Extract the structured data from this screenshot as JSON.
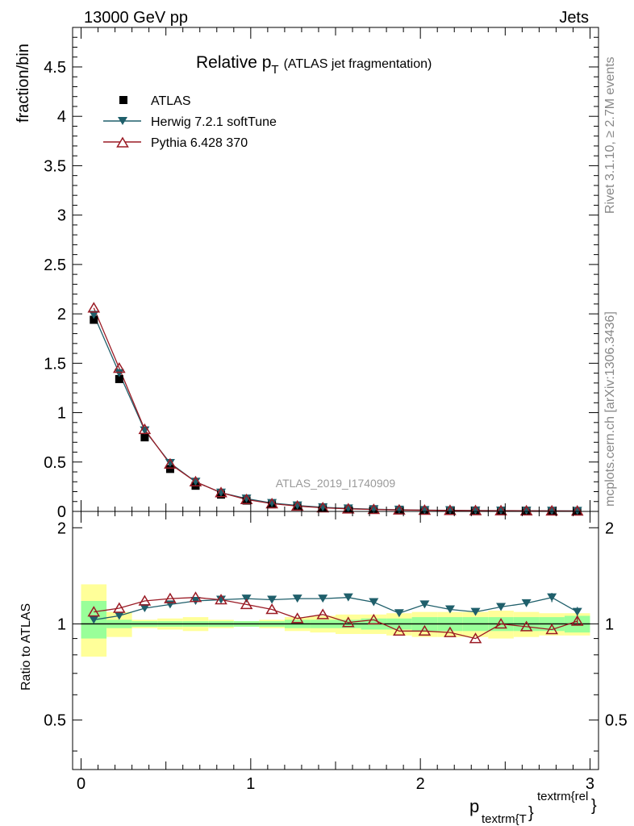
{
  "header": {
    "left": "13000 GeV pp",
    "right": "Jets"
  },
  "side_labels": {
    "rivet": "Rivet 3.1.10, ≥ 2.7M events",
    "mcplots": "mcplots.cern.ch [arXiv:1306.3436]"
  },
  "watermark": "ATLAS_2019_I1740909",
  "colors": {
    "atlas": "#000000",
    "herwig": "#1f5f6b",
    "pythia": "#9a1a24",
    "band_inner": "#99ff99",
    "band_outer": "#ffff99"
  },
  "chart_data": [
    {
      "type": "scatter",
      "title_main": "Relative p",
      "title_sub": "T",
      "title_rest": "(ATLAS jet fragmentation)",
      "ylabel": "fraction/bin",
      "xlim": [
        -0.05,
        3.05
      ],
      "ylim": [
        0,
        4.9
      ],
      "yticks": [
        {
          "v": 0,
          "label": "0"
        },
        {
          "v": 0.5,
          "label": "0.5"
        },
        {
          "v": 1,
          "label": "1"
        },
        {
          "v": 1.5,
          "label": "1.5"
        },
        {
          "v": 2,
          "label": "2"
        },
        {
          "v": 2.5,
          "label": "2.5"
        },
        {
          "v": 3,
          "label": "3"
        },
        {
          "v": 3.5,
          "label": "3.5"
        },
        {
          "v": 4,
          "label": "4"
        },
        {
          "v": 4.5,
          "label": "4.5"
        }
      ],
      "x": [
        0.075,
        0.225,
        0.375,
        0.525,
        0.675,
        0.825,
        0.975,
        1.125,
        1.275,
        1.425,
        1.575,
        1.725,
        1.875,
        2.025,
        2.175,
        2.325,
        2.475,
        2.625,
        2.775,
        2.925
      ],
      "series": [
        {
          "name": "ATLAS",
          "marker": "square",
          "values": [
            1.94,
            1.34,
            0.75,
            0.43,
            0.26,
            0.17,
            0.11,
            0.072,
            0.05,
            0.035,
            0.025,
            0.019,
            0.015,
            0.012,
            0.01,
            0.008,
            0.007,
            0.006,
            0.005,
            0.004
          ]
        },
        {
          "name": "Herwig 7.2.1 softTune",
          "marker": "triangle-down",
          "values": [
            1.99,
            1.4,
            0.82,
            0.49,
            0.3,
            0.19,
            0.13,
            0.085,
            0.06,
            0.042,
            0.03,
            0.022,
            0.017,
            0.013,
            0.011,
            0.009,
            0.008,
            0.007,
            0.006,
            0.005
          ]
        },
        {
          "name": "Pythia 6.428 370",
          "marker": "triangle-up-open",
          "values": [
            2.06,
            1.45,
            0.83,
            0.48,
            0.3,
            0.19,
            0.12,
            0.078,
            0.054,
            0.037,
            0.026,
            0.02,
            0.015,
            0.012,
            0.01,
            0.008,
            0.007,
            0.006,
            0.005,
            0.004
          ]
        }
      ]
    },
    {
      "type": "scatter",
      "ylabel": "Ratio to ATLAS",
      "xlabel_main": "p",
      "xlabel_sub": "textrm{T",
      "xlabel_brace": "}",
      "xlabel_sup": "textrm{rel",
      "xlabel_end": "}",
      "xlim": [
        -0.05,
        3.05
      ],
      "ylim": [
        0.35,
        2.25
      ],
      "xticks": [
        {
          "v": 0,
          "label": "0"
        },
        {
          "v": 1,
          "label": "1"
        },
        {
          "v": 2,
          "label": "2"
        },
        {
          "v": 3,
          "label": "3"
        }
      ],
      "yticks": [
        {
          "v": 0.5,
          "label": "0.5"
        },
        {
          "v": 1,
          "label": "1"
        },
        {
          "v": 2,
          "label": "2"
        }
      ],
      "x": [
        0.075,
        0.225,
        0.375,
        0.525,
        0.675,
        0.825,
        0.975,
        1.125,
        1.275,
        1.425,
        1.575,
        1.725,
        1.875,
        2.025,
        2.175,
        2.325,
        2.475,
        2.625,
        2.775,
        2.925
      ],
      "bins": [
        0.0,
        0.15,
        0.3,
        0.45,
        0.6,
        0.75,
        0.9,
        1.05,
        1.2,
        1.35,
        1.5,
        1.65,
        1.8,
        1.95,
        2.1,
        2.25,
        2.4,
        2.55,
        2.7,
        2.85,
        3.0
      ],
      "band_inner": [
        [
          0.9,
          1.18
        ],
        [
          0.97,
          1.03
        ],
        [
          0.98,
          1.02
        ],
        [
          0.98,
          1.02
        ],
        [
          0.98,
          1.02
        ],
        [
          0.98,
          1.02
        ],
        [
          0.98,
          1.02
        ],
        [
          0.98,
          1.02
        ],
        [
          0.97,
          1.03
        ],
        [
          0.97,
          1.03
        ],
        [
          0.97,
          1.03
        ],
        [
          0.96,
          1.04
        ],
        [
          0.96,
          1.04
        ],
        [
          0.95,
          1.05
        ],
        [
          0.95,
          1.05
        ],
        [
          0.95,
          1.05
        ],
        [
          0.95,
          1.05
        ],
        [
          0.95,
          1.05
        ],
        [
          0.95,
          1.05
        ],
        [
          0.94,
          1.06
        ]
      ],
      "band_outer": [
        [
          0.79,
          1.33
        ],
        [
          0.91,
          1.09
        ],
        [
          0.97,
          1.03
        ],
        [
          0.96,
          1.04
        ],
        [
          0.95,
          1.05
        ],
        [
          0.97,
          1.03
        ],
        [
          0.98,
          1.02
        ],
        [
          0.97,
          1.03
        ],
        [
          0.95,
          1.05
        ],
        [
          0.94,
          1.06
        ],
        [
          0.93,
          1.07
        ],
        [
          0.93,
          1.07
        ],
        [
          0.92,
          1.08
        ],
        [
          0.91,
          1.09
        ],
        [
          0.91,
          1.09
        ],
        [
          0.91,
          1.09
        ],
        [
          0.9,
          1.1
        ],
        [
          0.91,
          1.09
        ],
        [
          0.92,
          1.08
        ],
        [
          0.92,
          1.08
        ]
      ],
      "series": [
        {
          "name": "Herwig 7.2.1 softTune",
          "marker": "triangle-down",
          "values": [
            1.03,
            1.06,
            1.12,
            1.15,
            1.18,
            1.19,
            1.2,
            1.19,
            1.2,
            1.2,
            1.21,
            1.17,
            1.08,
            1.15,
            1.11,
            1.09,
            1.13,
            1.16,
            1.21,
            1.09
          ],
          "err": [
            0,
            0,
            0,
            0,
            0,
            0,
            0,
            0,
            0,
            0,
            0,
            0,
            0,
            0,
            0,
            0,
            0,
            0,
            0.04,
            0.04
          ]
        },
        {
          "name": "Pythia 6.428 370",
          "marker": "triangle-up-open",
          "values": [
            1.09,
            1.12,
            1.18,
            1.2,
            1.21,
            1.19,
            1.15,
            1.11,
            1.04,
            1.07,
            1.01,
            1.03,
            0.95,
            0.95,
            0.94,
            0.9,
            1.0,
            0.98,
            0.96,
            1.02
          ],
          "err": [
            0,
            0,
            0,
            0,
            0,
            0,
            0,
            0,
            0,
            0,
            0,
            0,
            0,
            0,
            0,
            0,
            0,
            0,
            0,
            0.03
          ]
        }
      ]
    }
  ]
}
